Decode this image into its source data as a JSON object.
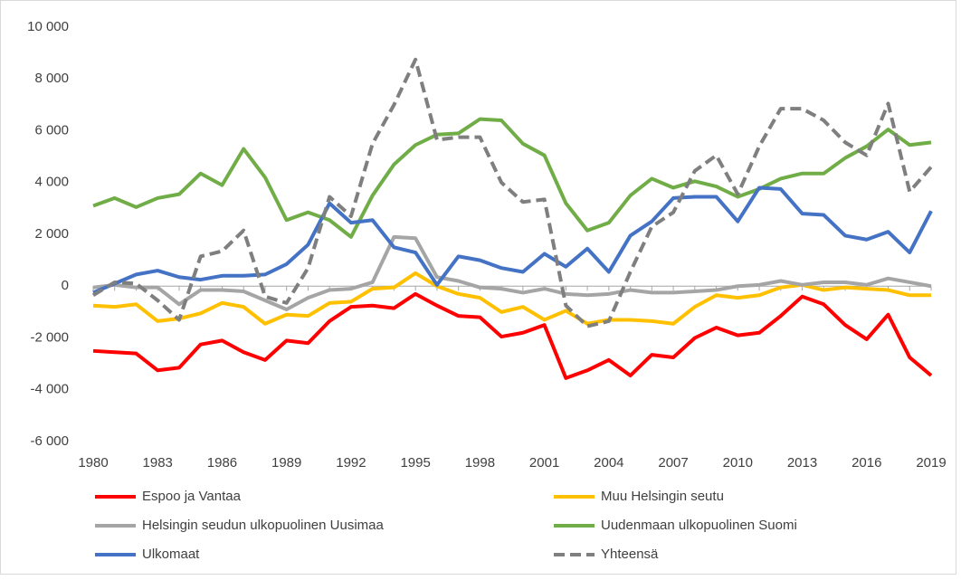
{
  "chart_data": {
    "type": "line",
    "x": [
      1980,
      1981,
      1982,
      1983,
      1984,
      1985,
      1986,
      1987,
      1988,
      1989,
      1990,
      1991,
      1992,
      1993,
      1994,
      1995,
      1996,
      1997,
      1998,
      1999,
      2000,
      2001,
      2002,
      2003,
      2004,
      2005,
      2006,
      2007,
      2008,
      2009,
      2010,
      2011,
      2012,
      2013,
      2014,
      2015,
      2016,
      2017,
      2018,
      2019
    ],
    "xlim": [
      1980,
      2019
    ],
    "xticks": [
      1980,
      1983,
      1986,
      1989,
      1992,
      1995,
      1998,
      2001,
      2004,
      2007,
      2010,
      2013,
      2016,
      2019
    ],
    "ylim": [
      -6000,
      10000
    ],
    "yticks": [
      {
        "value": -6000,
        "label": "-6 000"
      },
      {
        "value": -4000,
        "label": "-4 000"
      },
      {
        "value": -2000,
        "label": "-2 000"
      },
      0,
      {
        "value": 2000,
        "label": "2 000"
      },
      {
        "value": 4000,
        "label": "4 000"
      },
      {
        "value": 6000,
        "label": "6 000"
      },
      {
        "value": 8000,
        "label": "8 000"
      },
      {
        "value": 10000,
        "label": "10 000"
      }
    ],
    "grid": false,
    "legend": "bottom",
    "series": [
      {
        "name": "Espoo ja Vantaa",
        "color": "#ff0000",
        "dashed": false,
        "values": [
          -2500,
          -2550,
          -2600,
          -3250,
          -3150,
          -2250,
          -2100,
          -2550,
          -2850,
          -2100,
          -2200,
          -1350,
          -800,
          -750,
          -850,
          -300,
          -750,
          -1150,
          -1200,
          -1950,
          -1800,
          -1500,
          -3550,
          -3250,
          -2850,
          -3450,
          -2650,
          -2750,
          -2000,
          -1600,
          -1900,
          -1800,
          -1150,
          -400,
          -700,
          -1500,
          -2050,
          -1100,
          -2750,
          -3450
        ]
      },
      {
        "name": "Muu Helsingin seutu",
        "color": "#ffc000",
        "dashed": false,
        "values": [
          -750,
          -800,
          -700,
          -1350,
          -1250,
          -1050,
          -650,
          -800,
          -1450,
          -1100,
          -1150,
          -650,
          -600,
          -100,
          -50,
          500,
          0,
          -300,
          -450,
          -1000,
          -800,
          -1300,
          -950,
          -1450,
          -1300,
          -1300,
          -1350,
          -1450,
          -800,
          -350,
          -450,
          -350,
          -50,
          50,
          -150,
          -50,
          -100,
          -150,
          -350,
          -350
        ]
      },
      {
        "name": "Helsingin seudun ulkopuolinen Uusimaa",
        "color": "#a5a5a5",
        "dashed": false,
        "values": [
          -50,
          50,
          -50,
          -50,
          -700,
          -150,
          -150,
          -200,
          -550,
          -900,
          -450,
          -150,
          -100,
          150,
          1900,
          1850,
          350,
          200,
          -50,
          -100,
          -250,
          -100,
          -300,
          -350,
          -300,
          -150,
          -250,
          -250,
          -200,
          -150,
          0,
          50,
          200,
          50,
          150,
          150,
          50,
          300,
          150,
          0
        ]
      },
      {
        "name": "Uudenmaan ulkopuolinen Suomi",
        "color": "#70ad47",
        "dashed": false,
        "values": [
          3100,
          3400,
          3050,
          3400,
          3550,
          4350,
          3900,
          5300,
          4200,
          2550,
          2850,
          2550,
          1900,
          3500,
          4700,
          5450,
          5850,
          5900,
          6450,
          6400,
          5500,
          5050,
          3200,
          2150,
          2450,
          3500,
          4150,
          3800,
          4050,
          3850,
          3450,
          3750,
          4150,
          4350,
          4350,
          4950,
          5400,
          6050,
          5450,
          5550
        ]
      },
      {
        "name": "Ulkomaat",
        "color": "#4472c4",
        "dashed": false,
        "values": [
          -250,
          100,
          450,
          600,
          350,
          250,
          400,
          400,
          450,
          850,
          1600,
          3200,
          2450,
          2550,
          1500,
          1300,
          50,
          1150,
          1000,
          700,
          550,
          1250,
          750,
          1450,
          550,
          1950,
          2500,
          3400,
          3450,
          3450,
          2500,
          3800,
          3750,
          2800,
          2750,
          1950,
          1800,
          2100,
          1300,
          2900
        ]
      },
      {
        "name": "Yhteensä",
        "color": "#7f7f7f",
        "dashed": true,
        "values": [
          -350,
          150,
          100,
          -550,
          -1300,
          1150,
          1350,
          2150,
          -400,
          -650,
          700,
          3450,
          2700,
          5500,
          7000,
          8750,
          5650,
          5750,
          5750,
          4000,
          3250,
          3350,
          -750,
          -1550,
          -1350,
          550,
          2300,
          2850,
          4450,
          5050,
          3550,
          5400,
          6850,
          6850,
          6400,
          5550,
          5050,
          7050,
          3650,
          4600
        ]
      }
    ]
  }
}
